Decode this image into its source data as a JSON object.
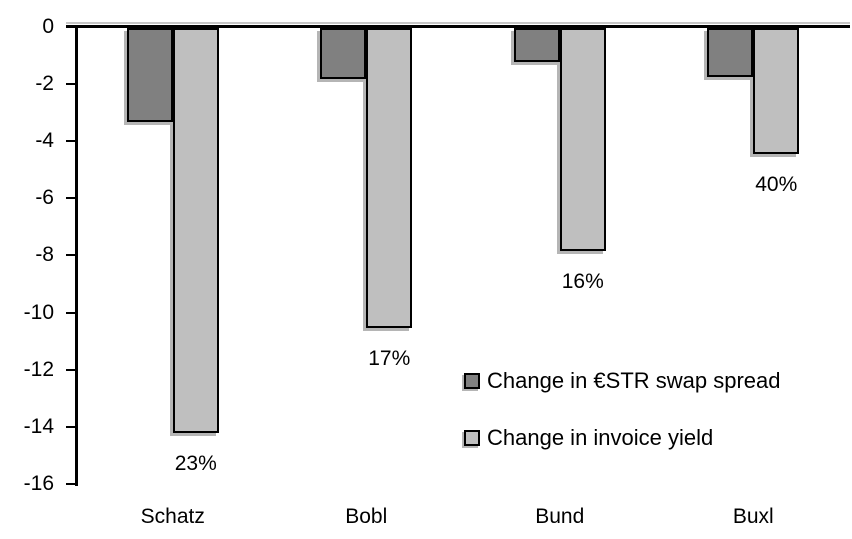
{
  "chart_data": {
    "type": "bar",
    "title": "",
    "xlabel": "",
    "ylabel": "",
    "categories": [
      "Schatz",
      "Bobl",
      "Bund",
      "Buxl"
    ],
    "series": [
      {
        "name": "Change in €STR swap spread",
        "color": "#808080",
        "values": [
          -3.3,
          -1.8,
          -1.2,
          -1.7
        ]
      },
      {
        "name": "Change in invoice yield",
        "color": "#bfbfbf",
        "values": [
          -14.2,
          -10.5,
          -7.8,
          -4.4
        ],
        "point_labels": [
          "23%",
          "17%",
          "16%",
          "40%"
        ]
      }
    ],
    "ylim": [
      -16,
      0
    ],
    "yticks": [
      0,
      -2,
      -4,
      -6,
      -8,
      -10,
      -12,
      -14,
      -16
    ],
    "grid": false,
    "legend_position": "center-right",
    "bar_border_color": "#000000",
    "shadow_color": "#b5b5b5",
    "text_color": "#000000",
    "background_color": "#ffffff"
  }
}
